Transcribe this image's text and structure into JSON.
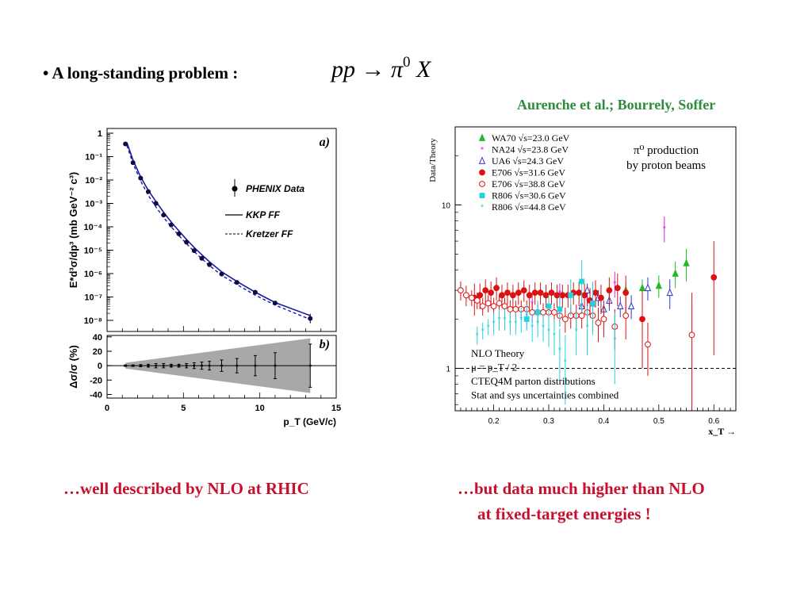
{
  "slide": {
    "bullet": "•",
    "headline": "A long-standing problem :",
    "formula": {
      "base": "pp → π",
      "sup": "0",
      "tail": " X"
    },
    "citation": "Aurenche et al.; Bourrely, Soffer",
    "caption_left": "…well described by NLO at RHIC",
    "caption_right_line1": "…but data much higher than NLO",
    "caption_right_line2": "at fixed-target energies !"
  },
  "chart_data": [
    {
      "type": "scatter",
      "panel_label": "a)",
      "ylabel_text": "E*d³σ/dp³ (mb GeV⁻² c³)",
      "yscale": "log",
      "ylim": [
        1e-08,
        1
      ],
      "xlim": [
        0,
        15
      ],
      "ytick_labels": [
        "1",
        "10⁻¹",
        "10⁻²",
        "10⁻³",
        "10⁻⁴",
        "10⁻⁵",
        "10⁻⁶",
        "10⁻⁷",
        "10⁻⁸"
      ],
      "legend": [
        "PHENIX Data",
        "KKP FF",
        "Kretzer FF"
      ],
      "legend_position": "top-right",
      "series": [
        {
          "name": "PHENIX Data",
          "style": "points",
          "x": [
            1.2,
            1.7,
            2.2,
            2.7,
            3.2,
            3.7,
            4.2,
            4.7,
            5.2,
            5.7,
            6.2,
            6.7,
            7.5,
            8.5,
            9.7,
            11.0,
            13.3
          ],
          "y": [
            0.35,
            0.055,
            0.012,
            0.0032,
            0.001,
            0.00032,
            0.00012,
            5e-05,
            2.2e-05,
            9.5e-06,
            4.5e-06,
            2.4e-06,
            9.5e-07,
            4.2e-07,
            1.6e-07,
            5.5e-08,
            1.2e-08
          ]
        },
        {
          "name": "KKP FF",
          "style": "solid",
          "x": [
            1.3,
            1.7,
            2.2,
            2.7,
            3.2,
            3.7,
            4.2,
            4.7,
            5.2,
            5.7,
            6.2,
            6.7,
            7.5,
            8.5,
            9.7,
            11.0,
            13.3
          ],
          "y": [
            0.4,
            0.07,
            0.0135,
            0.0036,
            0.0012,
            0.00042,
            0.00016,
            6.7e-05,
            2.9e-05,
            1.3e-05,
            6.4e-06,
            3.2e-06,
            1.2e-06,
            4.6e-07,
            1.6e-07,
            5.8e-08,
            1.6e-08
          ]
        },
        {
          "name": "Kretzer FF",
          "style": "dashed",
          "x": [
            1.3,
            1.7,
            2.2,
            2.7,
            3.2,
            3.7,
            4.2,
            4.7,
            5.2,
            5.7,
            6.2,
            6.7,
            7.5,
            8.5,
            9.7,
            11.0,
            13.3
          ],
          "y": [
            0.3,
            0.05,
            0.009,
            0.0022,
            0.0007,
            0.00025,
            0.0001,
            4.2e-05,
            1.9e-05,
            8.8e-06,
            4.3e-06,
            2.2e-06,
            8.5e-07,
            3.4e-07,
            1.2e-07,
            4.5e-08,
            1.1e-08
          ]
        }
      ]
    },
    {
      "type": "scatter",
      "panel_label": "b)",
      "ylabel_text": "Δσ/σ (%)",
      "xlabel_text": "p_T (GeV/c)",
      "ylim": [
        -45,
        42
      ],
      "xlim": [
        0,
        15
      ],
      "ytick_labels": [
        "40",
        "20",
        "0",
        "-20",
        "-40"
      ],
      "xtick_labels": [
        "0",
        "5",
        "10",
        "15"
      ],
      "band": {
        "x": [
          1.2,
          13.3
        ],
        "half_width": [
          4,
          38
        ]
      },
      "series": [
        {
          "name": "",
          "style": "points",
          "x": [
            1.2,
            1.7,
            2.2,
            2.7,
            3.2,
            3.7,
            4.2,
            4.7,
            5.2,
            5.7,
            6.2,
            6.7,
            7.5,
            8.5,
            9.7,
            11.0,
            13.3
          ],
          "y": [
            0,
            0,
            0,
            0,
            0,
            0,
            0,
            0,
            0,
            0,
            0,
            0,
            0,
            0,
            0,
            0,
            0
          ],
          "err": [
            1,
            1,
            1.5,
            2,
            3,
            3,
            2,
            2,
            3,
            4,
            5,
            6,
            8,
            10,
            14,
            18,
            30
          ]
        }
      ]
    },
    {
      "type": "scatter",
      "ylabel_text": "Data/Theory",
      "xlabel_text": "x_T →",
      "yscale": "log",
      "ylim": [
        0.55,
        30
      ],
      "xlim": [
        0.13,
        0.64
      ],
      "ytick_labels": [
        "10",
        "1"
      ],
      "xtick_labels": [
        "0.2",
        "0.3",
        "0.4",
        "0.5",
        "0.6"
      ],
      "title_lines": [
        "π⁰ production",
        "by proton beams"
      ],
      "reference_line": 1,
      "legend": [
        "WA70 √s=23.0 GeV",
        "NA24 √s=23.8 GeV",
        "UA6 √s=24.3 GeV",
        "E706 √s=31.6 GeV",
        "E706 √s=38.8 GeV",
        "R806 √s=30.6 GeV",
        "R806 √s=44.8 GeV"
      ],
      "legend_position": "top-left",
      "note_lines": [
        "NLO Theory",
        "μ = p_T / 2",
        "CTEQ4M parton distributions",
        "Stat and sys uncertainties combined"
      ],
      "series": [
        {
          "name": "WA70 √s=23.0 GeV",
          "color": "#22bb22",
          "marker": "triangle-filled",
          "x": [
            0.44,
            0.47,
            0.5,
            0.53,
            0.55
          ],
          "y": [
            3.0,
            3.1,
            3.2,
            3.8,
            4.4
          ],
          "err": [
            0.3,
            0.4,
            0.5,
            0.7,
            1.0
          ]
        },
        {
          "name": "NA24 √s=23.8 GeV",
          "color": "#dd22dd",
          "marker": "star",
          "x": [
            0.27,
            0.32,
            0.37,
            0.42,
            0.51
          ],
          "y": [
            2.5,
            2.9,
            2.6,
            3.3,
            7.2
          ],
          "err": [
            0.3,
            0.4,
            0.4,
            0.6,
            1.3
          ]
        },
        {
          "name": "UA6 √s=24.3 GeV",
          "color": "#3333cc",
          "marker": "triangle-open",
          "x": [
            0.36,
            0.37,
            0.38,
            0.39,
            0.4,
            0.41,
            0.43,
            0.45,
            0.48,
            0.52
          ],
          "y": [
            2.4,
            3.0,
            2.5,
            2.7,
            2.3,
            2.6,
            2.4,
            2.4,
            3.1,
            2.9
          ],
          "err": [
            0.25,
            0.3,
            0.3,
            0.3,
            0.3,
            0.35,
            0.35,
            0.4,
            0.5,
            0.6
          ]
        },
        {
          "name": "E706 √s=31.6 GeV",
          "color": "#dd1111",
          "marker": "circle-filled",
          "x": [
            0.165,
            0.175,
            0.185,
            0.195,
            0.205,
            0.215,
            0.225,
            0.235,
            0.245,
            0.255,
            0.265,
            0.275,
            0.285,
            0.295,
            0.305,
            0.315,
            0.325,
            0.335,
            0.345,
            0.355,
            0.365,
            0.375,
            0.385,
            0.395,
            0.41,
            0.425,
            0.44,
            0.47,
            0.6
          ],
          "y": [
            2.7,
            2.8,
            3.0,
            2.9,
            3.1,
            2.8,
            2.9,
            2.8,
            2.9,
            3.0,
            2.8,
            2.9,
            2.9,
            2.8,
            2.9,
            2.8,
            2.8,
            2.8,
            2.9,
            2.9,
            2.8,
            2.6,
            2.9,
            2.7,
            3.0,
            3.1,
            2.9,
            2.0,
            3.6
          ],
          "err": [
            0.6,
            0.5,
            0.5,
            0.5,
            0.5,
            0.45,
            0.45,
            0.45,
            0.45,
            0.45,
            0.45,
            0.45,
            0.45,
            0.45,
            0.45,
            0.45,
            0.45,
            0.45,
            0.45,
            0.5,
            0.5,
            0.5,
            0.55,
            0.55,
            0.6,
            0.7,
            0.8,
            1.0,
            2.4
          ]
        },
        {
          "name": "E706 √s=38.8 GeV",
          "color": "#dd1111",
          "marker": "circle-open",
          "x": [
            0.14,
            0.15,
            0.16,
            0.17,
            0.18,
            0.19,
            0.2,
            0.21,
            0.22,
            0.23,
            0.24,
            0.25,
            0.26,
            0.27,
            0.28,
            0.29,
            0.3,
            0.31,
            0.32,
            0.33,
            0.34,
            0.35,
            0.36,
            0.37,
            0.38,
            0.39,
            0.4,
            0.42,
            0.44,
            0.48,
            0.56
          ],
          "y": [
            3.0,
            2.8,
            2.7,
            2.6,
            2.4,
            2.5,
            2.4,
            2.5,
            2.4,
            2.3,
            2.3,
            2.3,
            2.3,
            2.2,
            2.2,
            2.2,
            2.2,
            2.2,
            2.1,
            2.0,
            2.1,
            2.1,
            2.1,
            2.2,
            2.1,
            1.9,
            2.0,
            1.8,
            2.1,
            1.4,
            1.6
          ],
          "err": [
            0.4,
            0.4,
            0.3,
            0.3,
            0.3,
            0.3,
            0.3,
            0.3,
            0.3,
            0.3,
            0.3,
            0.3,
            0.3,
            0.3,
            0.3,
            0.3,
            0.3,
            0.3,
            0.3,
            0.35,
            0.35,
            0.35,
            0.35,
            0.4,
            0.4,
            0.45,
            0.45,
            0.5,
            0.6,
            0.5,
            1.3
          ]
        },
        {
          "name": "R806 √s=30.6 GeV",
          "color": "#22d3e0",
          "marker": "square-filled",
          "x": [
            0.26,
            0.28,
            0.3,
            0.32,
            0.34,
            0.36,
            0.38
          ],
          "y": [
            2.0,
            2.2,
            2.4,
            2.3,
            2.8,
            3.4,
            2.5
          ],
          "err": [
            0.3,
            0.4,
            0.4,
            0.5,
            0.7,
            1.2,
            0.9
          ]
        },
        {
          "name": "R806 √s=44.8 GeV",
          "color": "#22d3e0",
          "marker": "star-open",
          "x": [
            0.17,
            0.18,
            0.19,
            0.2,
            0.21,
            0.22,
            0.23,
            0.24,
            0.25,
            0.26,
            0.27,
            0.28,
            0.29,
            0.3,
            0.31,
            0.32,
            0.33,
            0.35,
            0.37,
            0.42
          ],
          "y": [
            1.6,
            1.7,
            1.8,
            1.9,
            2.0,
            2.0,
            1.9,
            1.9,
            2.0,
            2.1,
            1.8,
            1.9,
            1.8,
            1.7,
            1.6,
            1.3,
            1.1,
            1.7,
            1.8,
            1.5
          ],
          "err": [
            0.2,
            0.2,
            0.2,
            0.3,
            0.3,
            0.3,
            0.3,
            0.3,
            0.35,
            0.35,
            0.35,
            0.35,
            0.35,
            0.35,
            0.4,
            0.45,
            0.5,
            0.5,
            0.6,
            0.7
          ]
        }
      ]
    }
  ]
}
